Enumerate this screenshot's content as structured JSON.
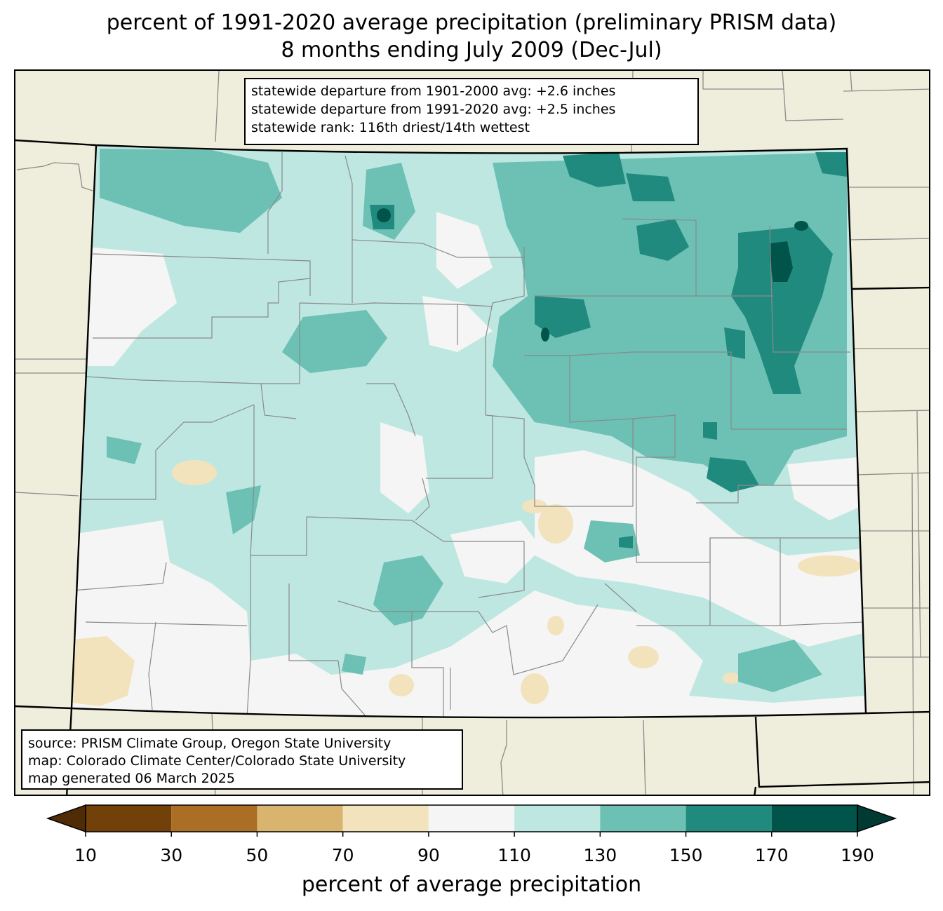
{
  "title": {
    "line1": "percent of 1991-2020 average precipitation (preliminary PRISM data)",
    "line2": "8 months ending July 2009 (Dec-Jul)"
  },
  "stats_box": {
    "line1": "statewide departure from 1901-2000 avg: +2.6 inches",
    "line2": "statewide departure from 1991-2020 avg: +2.5 inches",
    "line3": "statewide rank: 116th driest/14th wettest"
  },
  "source_box": {
    "line1": "source: PRISM Climate Group, Oregon State University",
    "line2": "map: Colorado Climate Center/Colorado State University",
    "line3": "map generated 06 March 2025"
  },
  "colorbar": {
    "label": "percent of average precipitation",
    "ticks": [
      "10",
      "30",
      "50",
      "70",
      "90",
      "110",
      "130",
      "150",
      "170",
      "190"
    ],
    "bins": [
      {
        "from": 10,
        "to": 30,
        "color": "#724009"
      },
      {
        "from": 30,
        "to": 50,
        "color": "#aa6e25"
      },
      {
        "from": 50,
        "to": 70,
        "color": "#d8b46f"
      },
      {
        "from": 70,
        "to": 90,
        "color": "#f3e3bd"
      },
      {
        "from": 90,
        "to": 110,
        "color": "#f4f5f4"
      },
      {
        "from": 110,
        "to": 130,
        "color": "#bee7e1"
      },
      {
        "from": 130,
        "to": 150,
        "color": "#6cc0b4"
      },
      {
        "from": 150,
        "to": 170,
        "color": "#218a7f"
      },
      {
        "from": 170,
        "to": 190,
        "color": "#01544a"
      }
    ],
    "under_color": "#4f2b06",
    "over_color": "#013a32"
  },
  "map": {
    "background_color": "#efeedc",
    "state_fill": "#bee7e1"
  }
}
